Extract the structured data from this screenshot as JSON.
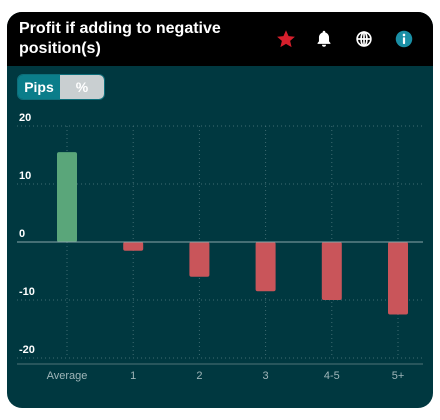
{
  "header": {
    "title": "Profit if adding to negative position(s)",
    "icons": [
      "star-icon",
      "bell-icon",
      "globe-icon",
      "info-icon"
    ]
  },
  "toggle": {
    "options": [
      "Pips",
      "%"
    ],
    "selected": "Pips"
  },
  "colors": {
    "card_bg": "#003840",
    "header_bg": "#000000",
    "positive": "#5aa67a",
    "negative": "#c9555a",
    "accent": "#0b7d8a",
    "star": "#d61f2c"
  },
  "chart_data": {
    "type": "bar",
    "categories": [
      "Average",
      "1",
      "2",
      "3",
      "4-5",
      "5+"
    ],
    "values": [
      15.5,
      -1.5,
      -6,
      -8.5,
      -10,
      -12.5
    ],
    "ylim": [
      -20,
      20
    ],
    "yticks": [
      20,
      10,
      0,
      -10,
      -20
    ],
    "grid": true,
    "title": "",
    "xlabel": "",
    "ylabel": ""
  }
}
